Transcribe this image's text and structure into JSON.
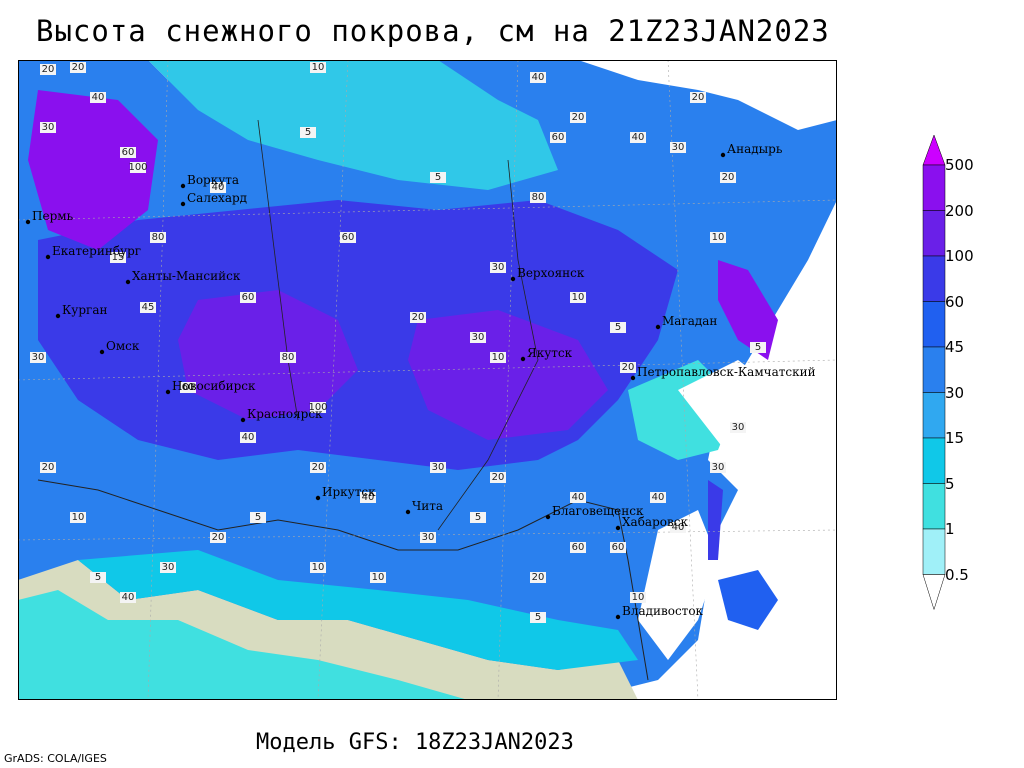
{
  "header": {
    "title": "Высота снежного покрова, см на 21Z23JAN2023"
  },
  "footer": {
    "model": "Модель GFS: 18Z23JAN2023",
    "credit": "GrADS: COLA/IGES"
  },
  "legend": {
    "levels": [
      "500",
      "200",
      "100",
      "60",
      "45",
      "30",
      "15",
      "5",
      "1",
      "0.5"
    ],
    "colors": [
      "#cc00ff",
      "#8a10ee",
      "#6a20e8",
      "#3a3ae8",
      "#2060f0",
      "#2a80ee",
      "#30a8f0",
      "#10c8e8",
      "#40e0e0",
      "#a0f0f8",
      "#ffffff"
    ]
  },
  "map": {
    "colors": {
      "land_bare": "#d8dcc0",
      "ocean": "#ffffff",
      "sea_ice": "#30c8e8"
    },
    "cities": [
      {
        "name": "Воркута"
      },
      {
        "name": "Салехард"
      },
      {
        "name": "Пермь"
      },
      {
        "name": "Екатеринбург"
      },
      {
        "name": "Ханты-Мансийск"
      },
      {
        "name": "Курган"
      },
      {
        "name": "Омск"
      },
      {
        "name": "Новосибирск"
      },
      {
        "name": "Красноярск"
      },
      {
        "name": "Иркутск"
      },
      {
        "name": "Чита"
      },
      {
        "name": "Благовещенск"
      },
      {
        "name": "Хабаровск"
      },
      {
        "name": "Владивосток"
      },
      {
        "name": "Якутск"
      },
      {
        "name": "Верхоянск"
      },
      {
        "name": "Магадан"
      },
      {
        "name": "Петропавловск-Камчатский"
      },
      {
        "name": "Анадырь"
      }
    ],
    "contour_labels": [
      "20",
      "40",
      "60",
      "80",
      "100",
      "30",
      "10",
      "5",
      "45",
      "15",
      "20",
      "40",
      "60",
      "80",
      "100",
      "30",
      "20",
      "10",
      "5",
      "40",
      "60",
      "20",
      "30",
      "10",
      "5",
      "40",
      "60",
      "80",
      "20",
      "30",
      "10",
      "5",
      "20",
      "40",
      "30",
      "10",
      "5",
      "20",
      "30",
      "40",
      "60",
      "20",
      "30",
      "40",
      "10",
      "5",
      "20",
      "30",
      "60",
      "40",
      "20",
      "10",
      "30",
      "5",
      "20",
      "40",
      "60",
      "40",
      "20",
      "30",
      "10",
      "5"
    ]
  }
}
